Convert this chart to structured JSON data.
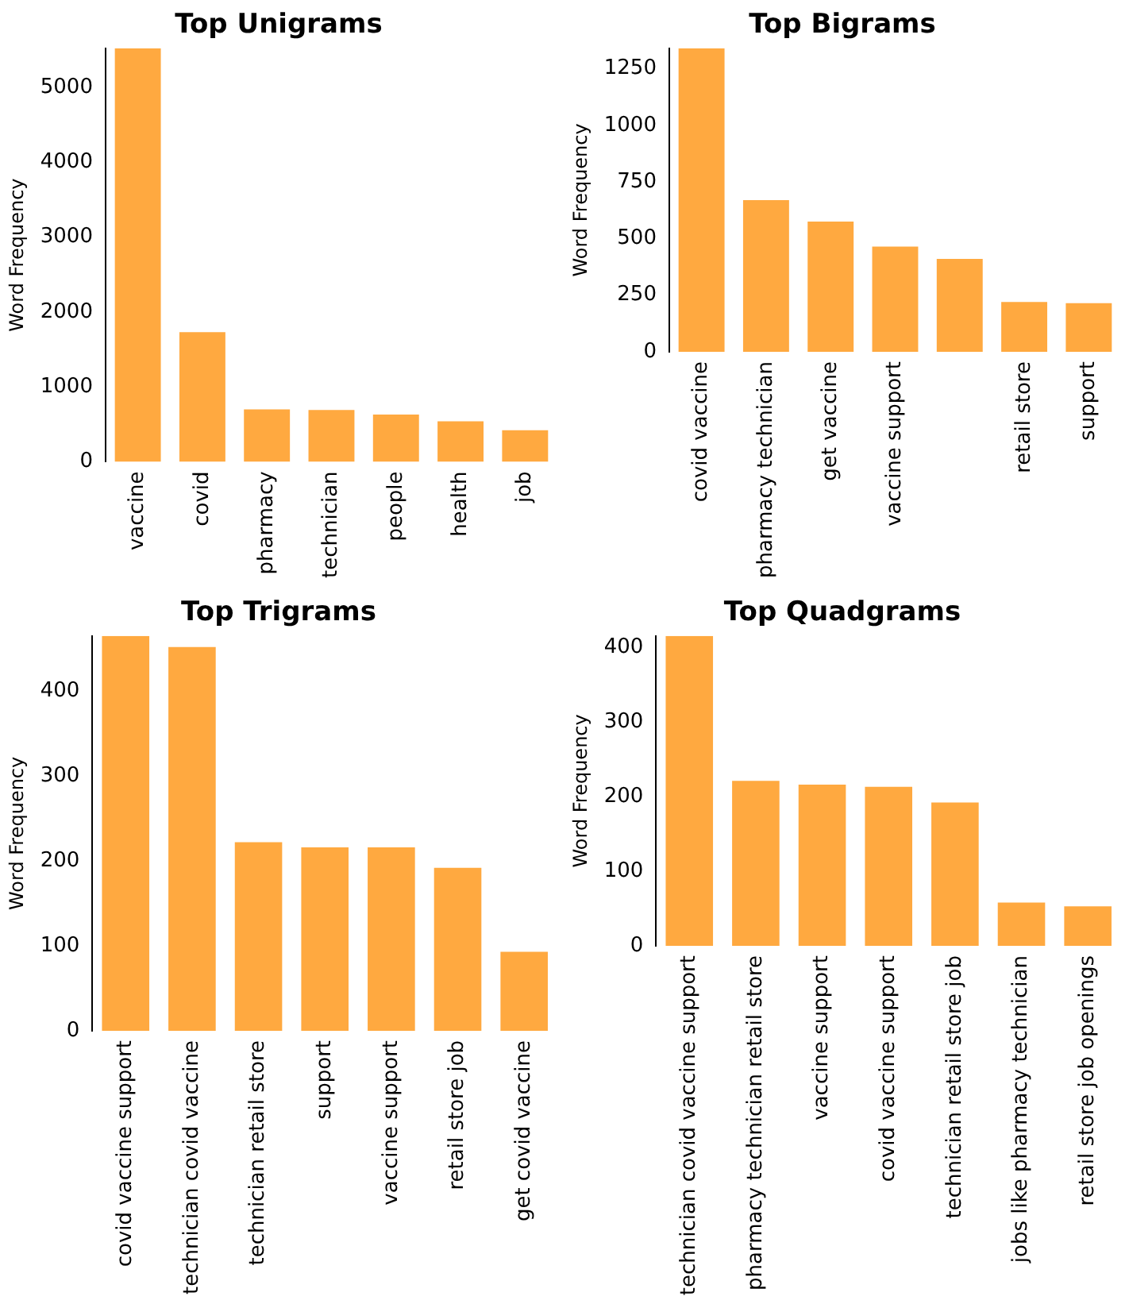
{
  "chart_data": [
    {
      "type": "bar",
      "title": "Top Unigrams",
      "ylabel": "Word Frequency",
      "categories": [
        "vaccine",
        "covid",
        "pharmacy",
        "technician",
        "people",
        "health",
        "job"
      ],
      "values": [
        5520,
        1730,
        700,
        690,
        630,
        540,
        420
      ],
      "color": "#ffa940",
      "ylim": [
        0,
        5520
      ],
      "yticks": [
        0,
        1000,
        2000,
        3000,
        4000,
        5000
      ],
      "grid": false
    },
    {
      "type": "bar",
      "title": "Top Bigrams",
      "ylabel": "Word Frequency",
      "categories": [
        "covid vaccine",
        "pharmacy technician",
        "get vaccine",
        "vaccine support",
        null,
        "retail store",
        "support"
      ],
      "values": [
        1340,
        670,
        575,
        465,
        410,
        220,
        215
      ],
      "color": "#ffa940",
      "ylim": [
        0,
        1340
      ],
      "yticks": [
        0,
        250,
        500,
        750,
        1000,
        1250
      ],
      "grid": false
    },
    {
      "type": "bar",
      "title": "Top Trigrams",
      "ylabel": "Word Frequency",
      "categories": [
        "covid vaccine support",
        "technician covid vaccine",
        "technician retail store",
        "support",
        "vaccine support",
        "retail store job",
        "get covid vaccine"
      ],
      "values": [
        465,
        452,
        222,
        216,
        216,
        192,
        93
      ],
      "color": "#ffa940",
      "ylim": [
        0,
        465
      ],
      "yticks": [
        0,
        100,
        200,
        300,
        400
      ],
      "grid": false
    },
    {
      "type": "bar",
      "title": "Top Quadgrams",
      "ylabel": "Word Frequency",
      "categories": [
        "technician covid vaccine support",
        "pharmacy technician retail store",
        "vaccine support",
        "covid vaccine support",
        "technician retail store job",
        "jobs like pharmacy technician",
        "retail store job openings"
      ],
      "values": [
        415,
        221,
        216,
        213,
        192,
        58,
        53
      ],
      "color": "#ffa940",
      "ylim": [
        0,
        415
      ],
      "yticks": [
        0,
        100,
        200,
        300,
        400
      ],
      "grid": false
    }
  ]
}
